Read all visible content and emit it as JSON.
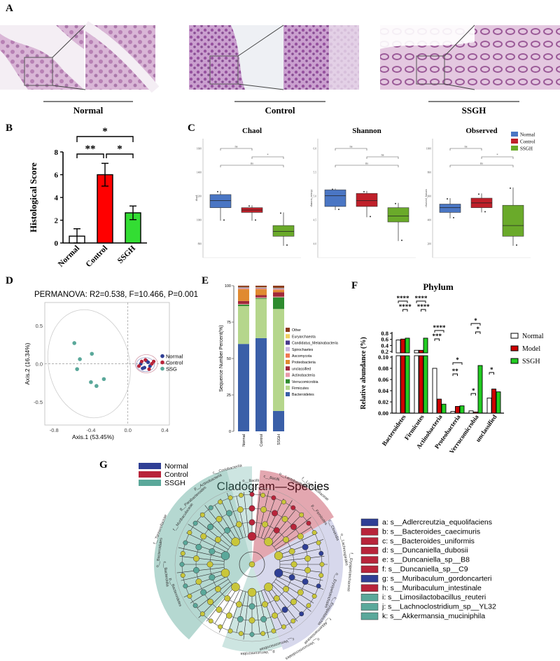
{
  "panels": {
    "A": {
      "letter": "A",
      "groups": [
        "Normal",
        "Control",
        "SSGH"
      ]
    },
    "B": {
      "letter": "B"
    },
    "C": {
      "letter": "C"
    },
    "D": {
      "letter": "D"
    },
    "E": {
      "letter": "E"
    },
    "F": {
      "letter": "F"
    },
    "G": {
      "letter": "G"
    }
  },
  "colors": {
    "normal": "#2f3f95",
    "control": "#b8243a",
    "ssgh": "#5aa89a",
    "box_blue": "#4a76c4",
    "box_red": "#c0202a",
    "box_green": "#6aaa2a"
  },
  "chart_data": [
    {
      "id": "B",
      "type": "bar",
      "ylabel": "Histological Score",
      "ylim": [
        0,
        8
      ],
      "yticks": [
        0,
        2,
        4,
        6,
        8
      ],
      "categories": [
        "Normal",
        "Control",
        "SSGH"
      ],
      "values": [
        0.6,
        6.0,
        2.65
      ],
      "errors": [
        0.65,
        1.0,
        0.6
      ],
      "bar_colors": [
        "#ffffff",
        "#ff0000",
        "#33dd33"
      ],
      "significance": [
        {
          "pair": [
            "Normal",
            "SSGH"
          ],
          "label": "*"
        },
        {
          "pair": [
            "Normal",
            "Control"
          ],
          "label": "**"
        },
        {
          "pair": [
            "Control",
            "SSGH"
          ],
          "label": "*"
        }
      ]
    },
    {
      "id": "C",
      "type": "box",
      "legend": [
        "Normal",
        "Control",
        "SSGH"
      ],
      "subplots": [
        {
          "title": "Chaol",
          "ylabel": "chao1",
          "yticks": [
            "1600",
            "1400",
            "1200",
            "1000",
            "800"
          ],
          "boxes": [
            {
              "q1": 0.47,
              "med": 0.52,
              "q3": 0.58,
              "lo": 0.44,
              "hi": 0.69
            },
            {
              "q1": 0.58,
              "med": 0.6,
              "q3": 0.62,
              "lo": 0.56,
              "hi": 0.69
            },
            {
              "q1": 0.73,
              "med": 0.78,
              "q3": 0.82,
              "lo": 0.62,
              "hi": 0.9
            }
          ],
          "sig": [
            {
              "label": "ns",
              "x1": 0,
              "x2": 1,
              "row": 0
            },
            {
              "label": "*",
              "x1": 1,
              "x2": 2,
              "row": 1
            },
            {
              "label": "ns",
              "x1": 0,
              "x2": 2,
              "row": 2
            }
          ]
        },
        {
          "title": "Shannon",
          "ylabel": "shannon_entropy",
          "yticks": [
            "6.0",
            "5.5",
            "5.0",
            "4.5",
            "4.0"
          ],
          "boxes": [
            {
              "q1": 0.43,
              "med": 0.48,
              "q3": 0.57,
              "lo": 0.42,
              "hi": 0.6
            },
            {
              "q1": 0.46,
              "med": 0.52,
              "q3": 0.57,
              "lo": 0.44,
              "hi": 0.66
            },
            {
              "q1": 0.58,
              "med": 0.65,
              "q3": 0.7,
              "lo": 0.54,
              "hi": 0.86
            }
          ],
          "sig": [
            {
              "label": "ns",
              "x1": 0,
              "x2": 1,
              "row": 0
            },
            {
              "label": "ns",
              "x1": 1,
              "x2": 2,
              "row": 1
            },
            {
              "label": "ns",
              "x1": 0,
              "x2": 2,
              "row": 2
            }
          ]
        },
        {
          "title": "Observed",
          "ylabel": "observed_features",
          "yticks": [
            "1000",
            "800",
            "600",
            "400",
            "200"
          ],
          "boxes": [
            {
              "q1": 0.55,
              "med": 0.58,
              "q3": 0.62,
              "lo": 0.5,
              "hi": 0.67
            },
            {
              "q1": 0.5,
              "med": 0.54,
              "q3": 0.58,
              "lo": 0.46,
              "hi": 0.62
            },
            {
              "q1": 0.56,
              "med": 0.73,
              "q3": 0.82,
              "lo": 0.41,
              "hi": 0.9
            }
          ],
          "sig": [
            {
              "label": "ns",
              "x1": 0,
              "x2": 1,
              "row": 0
            },
            {
              "label": "*",
              "x1": 1,
              "x2": 2,
              "row": 1
            },
            {
              "label": "ns",
              "x1": 0,
              "x2": 2,
              "row": 2
            }
          ]
        }
      ]
    },
    {
      "id": "D",
      "type": "scatter",
      "title": "PERMANOVA: R2=0.538, F=10.466, P=0.001",
      "xlabel": "Axis.1 (53.45%)",
      "ylabel": "Axis.2 (16.34%)",
      "xlim": [
        -0.9,
        0.45
      ],
      "ylim": [
        -0.8,
        0.8
      ],
      "xticks": [
        "-0.8",
        "-0.4",
        "0.0",
        "0.4"
      ],
      "yticks": [
        "0.5",
        "0.0",
        "-0.5"
      ],
      "legend": [
        "Normal",
        "Control",
        "SSG"
      ],
      "series": [
        {
          "name": "Normal",
          "color": "#2f3f95",
          "points": [
            [
              0.14,
              0.0
            ],
            [
              0.18,
              -0.05
            ],
            [
              0.22,
              0.02
            ],
            [
              0.16,
              -0.06
            ],
            [
              0.24,
              -0.03
            ],
            [
              0.2,
              0.04
            ]
          ]
        },
        {
          "name": "Control",
          "color": "#b8243a",
          "points": [
            [
              0.12,
              -0.03
            ],
            [
              0.19,
              0.05
            ],
            [
              0.26,
              0.0
            ],
            [
              0.23,
              -0.07
            ],
            [
              0.15,
              0.03
            ],
            [
              0.28,
              0.03
            ]
          ]
        },
        {
          "name": "SSG",
          "color": "#5aa89a",
          "points": [
            [
              -0.58,
              0.27
            ],
            [
              -0.39,
              0.13
            ],
            [
              -0.52,
              0.06
            ],
            [
              -0.55,
              -0.07
            ],
            [
              -0.4,
              -0.24
            ],
            [
              -0.34,
              -0.29
            ],
            [
              -0.26,
              -0.2
            ]
          ]
        }
      ]
    },
    {
      "id": "E",
      "type": "bar",
      "stacked": true,
      "ylabel": "Sequence Number Percent(%)",
      "categories": [
        "Normal",
        "Control",
        "SSGH"
      ],
      "yticks": [
        "100",
        "75",
        "50",
        "25",
        "0"
      ],
      "layers": [
        "Bacteroidetes",
        "Firmicutes",
        "Verrucomicrobia",
        "Actinobacteria",
        "unclassified",
        "Proteobacteria",
        "Ascomycota",
        "Spirochaetes",
        "Candidatus_Melainabacteria",
        "Euryarchaeota",
        "Other"
      ],
      "layer_colors": [
        "#3a5fa8",
        "#b5d68c",
        "#2e8b2e",
        "#e89aa8",
        "#a0283a",
        "#e08a30",
        "#f07850",
        "#c8b8e0",
        "#483a8c",
        "#f0d060",
        "#8b3a1a"
      ],
      "values": [
        [
          60,
          26,
          1,
          0.5,
          2,
          8,
          0.5,
          0.5,
          0.3,
          0.3,
          0.9
        ],
        [
          64,
          27,
          0.5,
          0.5,
          1.5,
          4,
          0.5,
          0.4,
          0.3,
          0.3,
          1
        ],
        [
          14,
          70,
          8,
          0.5,
          3,
          1.5,
          0.5,
          0.5,
          0.3,
          0.3,
          1.4
        ]
      ],
      "legend_order": [
        "Other",
        "Euryarchaeota",
        "Candidatus_Melainabacteria",
        "Spirochaetes",
        "Ascomycota",
        "Proteobacteria",
        "unclassified",
        "Actinobacteria",
        "Verrucomicrobia",
        "Firmicutes",
        "Bacteroidetes"
      ]
    },
    {
      "id": "F",
      "type": "bar",
      "title": "Phylum",
      "ylabel": "Relative abundance (%)",
      "categories": [
        "Bacteroidetes",
        "Firmicutes",
        "Actinobacteria",
        "Proteobacteria",
        "Verrucomicrobia",
        "unclassified"
      ],
      "legend": [
        "Normal",
        "Model",
        "SSGH"
      ],
      "series": [
        {
          "name": "Normal",
          "color": "#ffffff",
          "values": [
            0.58,
            0.24,
            0.08,
            0.003,
            0.004,
            0.027
          ]
        },
        {
          "name": "Model",
          "color": "#cc0000",
          "values": [
            0.61,
            0.24,
            0.025,
            0.012,
            0.002,
            0.043
          ]
        },
        {
          "name": "SSGH",
          "color": "#22cc22",
          "values": [
            0.64,
            0.64,
            0.016,
            0.013,
            0.085,
            0.038
          ]
        }
      ],
      "yticks_upper": [
        "0.8",
        "0.6",
        "0.4",
        "0.2"
      ],
      "yticks_lower": [
        "0.10",
        "0.08",
        "0.06",
        "0.04",
        "0.02",
        "0.00"
      ],
      "stars": [
        "****",
        "****",
        "****",
        "****",
        "****",
        "***",
        "**",
        "*",
        "*",
        "*",
        "*",
        "*"
      ]
    },
    {
      "id": "G",
      "type": "diagram",
      "title": "Cladogram—Species",
      "legend": [
        "Normal",
        "Control",
        "SSGH"
      ],
      "species": [
        {
          "label": "a: s__Adlercreutzia_equolifaciens",
          "group": "normal"
        },
        {
          "label": "b: s__Bacteroides_caecimuris",
          "group": "control"
        },
        {
          "label": "c: s__Bacteroides_uniformis",
          "group": "control"
        },
        {
          "label": "d: s__Duncaniella_dubosii",
          "group": "control"
        },
        {
          "label": "e: s__Duncaniella_sp__B8",
          "group": "control"
        },
        {
          "label": "f: s__Duncaniella_sp__C9",
          "group": "control"
        },
        {
          "label": "g: s__Muribaculum_gordoncarteri",
          "group": "normal"
        },
        {
          "label": "h: s__Muribaculum_intestinale",
          "group": "control"
        },
        {
          "label": "i: s__Limosilactobacillus_reuteri",
          "group": "ssgh"
        },
        {
          "label": "j: s__Lachnoclostridium_sp__YL32",
          "group": "ssgh"
        },
        {
          "label": "k: s__Akkermansia_muciniphila",
          "group": "ssgh"
        }
      ],
      "ring_labels": [
        "p__Bacteroidetes",
        "c__Bacteroidia",
        "o__Bacteroidales",
        "f__Tannerellaceae",
        "f__Muribaculaceae",
        "g__Parabacteroides",
        "p__Actinobacteria",
        "c__Coriobacteriia",
        "o__Bacilli",
        "c__Bacilli",
        "o__Lactobacillales",
        "f__Lactobacillaceae",
        "p__Firmicutes",
        "c__Clostridia",
        "o__Lachnospirales",
        "f__Erysipelotrichaceae",
        "o__Erysipelotrichales",
        "c__Erysipelotrichia",
        "f__Akkermansiaceae",
        "o__Verrucomicrobiales",
        "c__Verrucomicrobiae",
        "p__Verrucomicrobia"
      ]
    }
  ]
}
